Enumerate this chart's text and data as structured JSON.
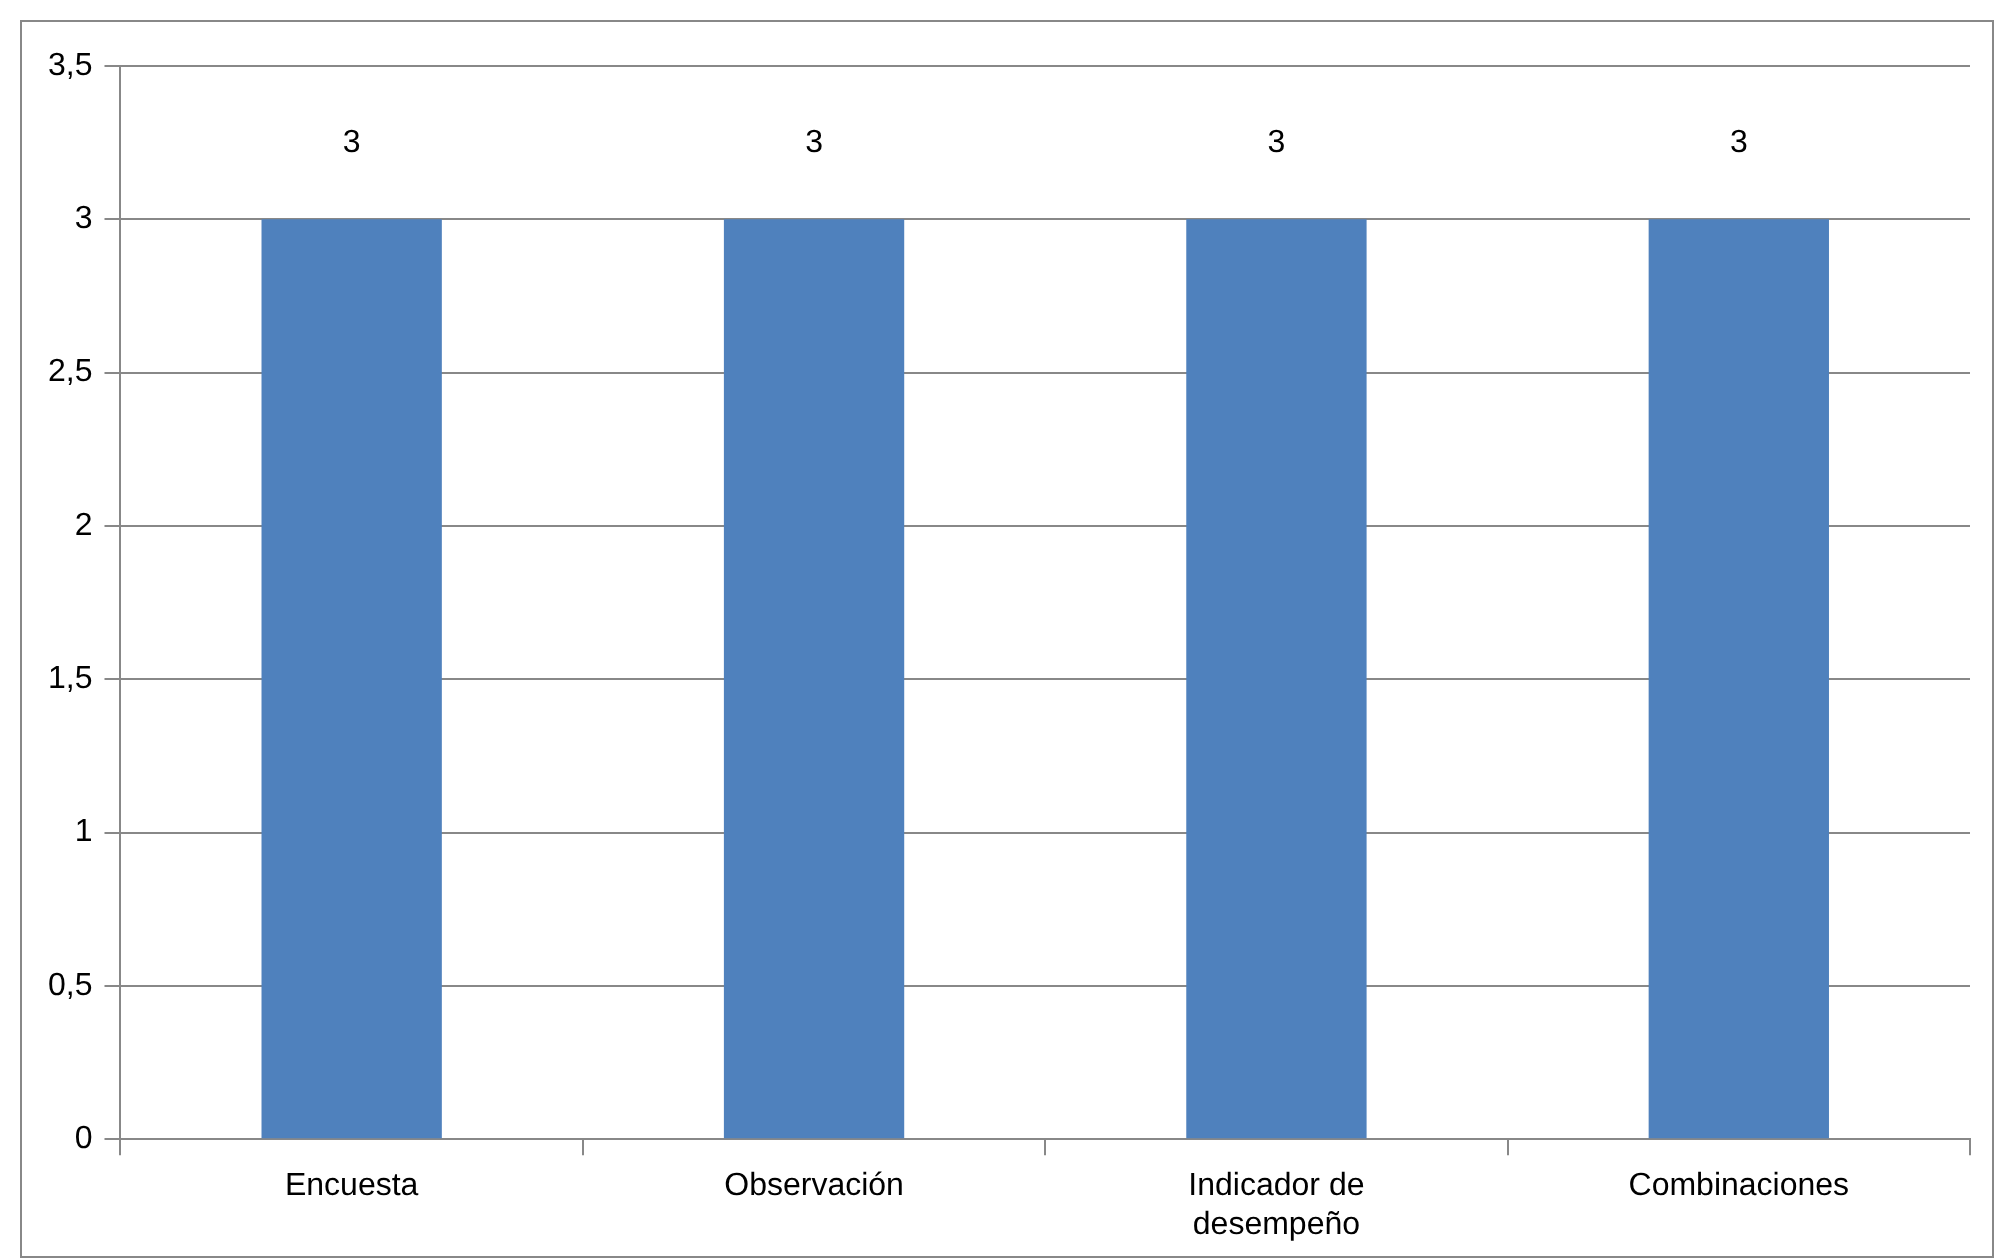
{
  "chart_data": {
    "type": "bar",
    "categories": [
      "Encuesta",
      "Observación",
      "Indicador de desempeño",
      "Combinaciones"
    ],
    "values": [
      3,
      3,
      3,
      3
    ],
    "color": "#4f81bd",
    "ylim": [
      0,
      3.5
    ],
    "yticks": [
      {
        "value": 0,
        "label": "0"
      },
      {
        "value": 0.5,
        "label": "0,5"
      },
      {
        "value": 1,
        "label": "1"
      },
      {
        "value": 1.5,
        "label": "1,5"
      },
      {
        "value": 2,
        "label": "2"
      },
      {
        "value": 2.5,
        "label": "2,5"
      },
      {
        "value": 3,
        "label": "3"
      },
      {
        "value": 3.5,
        "label": "3,5"
      }
    ],
    "grid": "y",
    "data_labels": true,
    "legend": false
  }
}
